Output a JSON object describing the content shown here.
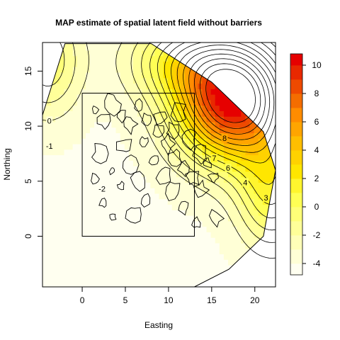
{
  "chart_data": {
    "type": "heatmap",
    "title": "MAP estimate of spatial latent field without barriers",
    "xlabel": "Easting",
    "ylabel": "Northing",
    "xlim": [
      -4.6,
      22.4
    ],
    "ylim": [
      -4.6,
      17.6
    ],
    "xticks": [
      0,
      5,
      10,
      15,
      20
    ],
    "yticks": [
      0,
      5,
      10,
      15
    ],
    "colorbar": {
      "ticks": [
        -4,
        -2,
        0,
        2,
        4,
        6,
        8,
        10
      ],
      "range": [
        -4.8,
        10.8
      ],
      "levels": [
        -4.8,
        -4,
        -3,
        -2,
        -1,
        0,
        1,
        2,
        3,
        4,
        5,
        6,
        7,
        8,
        9,
        10,
        10.8
      ],
      "colors": [
        "#FFFFF0",
        "#FFFFD6",
        "#FFFFB8",
        "#FFFF99",
        "#FFFF78",
        "#FFFF55",
        "#FFF52E",
        "#FFE600",
        "#FFD200",
        "#FFBE00",
        "#FFA500",
        "#FF8C00",
        "#F46D00",
        "#EE4A00",
        "#E82800",
        "#E60000"
      ]
    },
    "contour_levels": [
      -3,
      -2,
      -1,
      0,
      1,
      2,
      3,
      4,
      5,
      6,
      7,
      8,
      9
    ],
    "contour_labels": [
      {
        "text": "0",
        "x": -3.8,
        "y": 10.5
      },
      {
        "text": "-1",
        "x": -3.8,
        "y": 8.2
      },
      {
        "text": "-2",
        "x": 2.3,
        "y": 4.3
      },
      {
        "text": "3",
        "x": 21.3,
        "y": 3.5
      },
      {
        "text": "4",
        "x": 18.9,
        "y": 4.9
      },
      {
        "text": "6",
        "x": 16.9,
        "y": 6.2
      },
      {
        "text": "7",
        "x": 15.3,
        "y": 7.1
      },
      {
        "text": "8",
        "x": 16.5,
        "y": 8.9
      }
    ],
    "domain_boundary": [
      [
        -2,
        17.5
      ],
      [
        8,
        17.5
      ],
      [
        15,
        14
      ],
      [
        19,
        11
      ],
      [
        21,
        9.5
      ],
      [
        22.4,
        6
      ],
      [
        21,
        0
      ],
      [
        17,
        -3
      ],
      [
        13,
        -4.6
      ],
      [
        -4.6,
        -4.6
      ],
      [
        -4.6,
        2
      ],
      [
        -4.6,
        11
      ],
      [
        -2,
        17.5
      ]
    ],
    "inner_rectangle": {
      "x0": 0,
      "y0": 0,
      "x1": 13,
      "y1": 13
    },
    "grid": false,
    "legend": "right colorbar"
  }
}
